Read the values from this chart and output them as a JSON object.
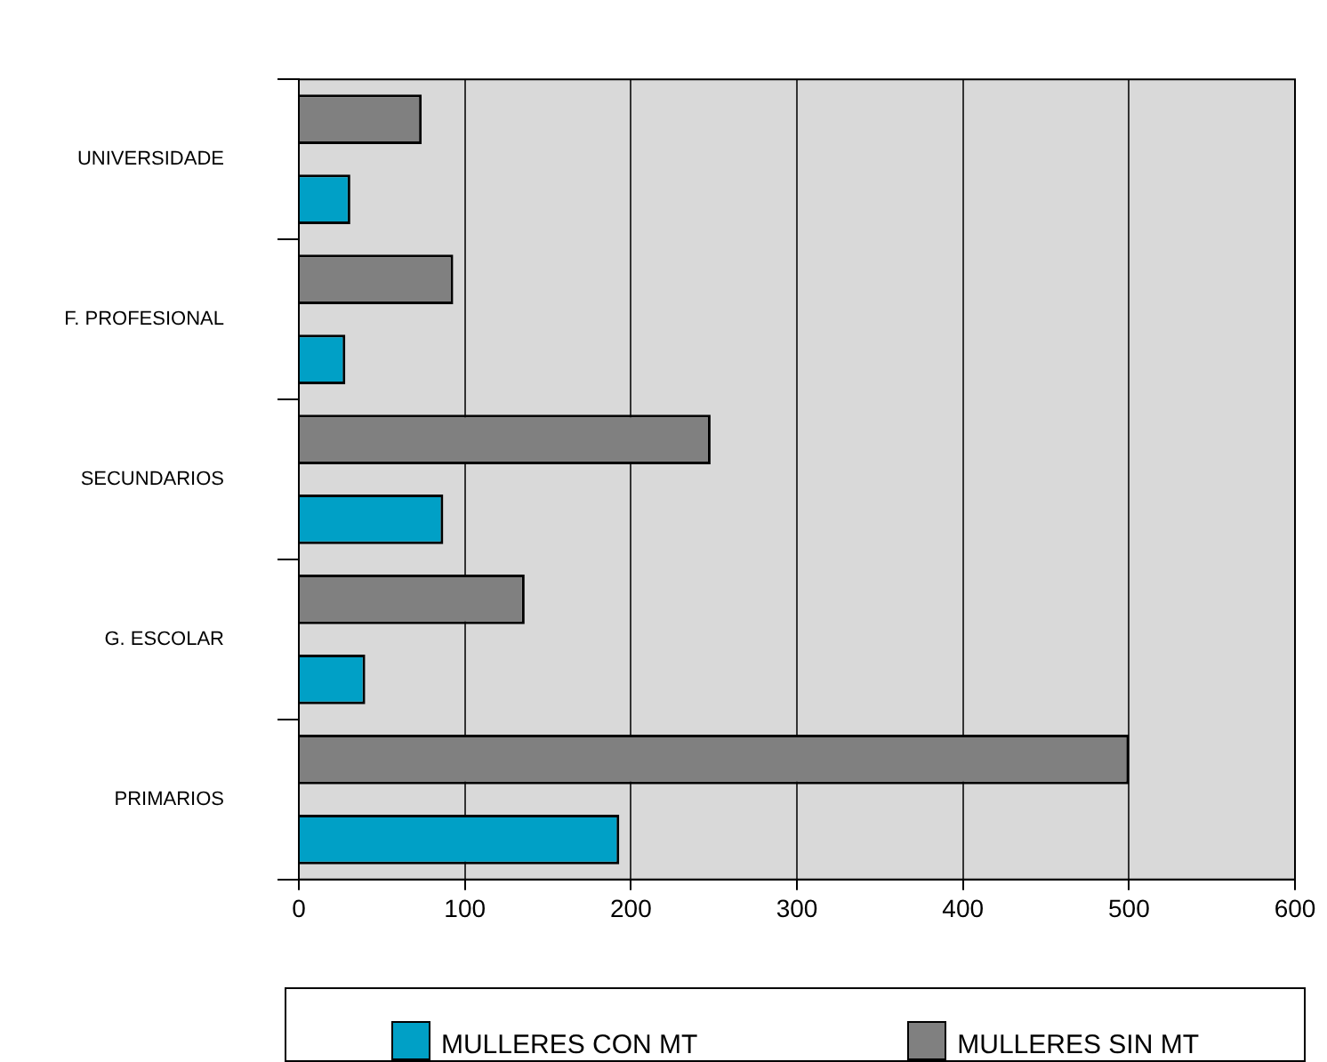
{
  "chart_data": {
    "type": "bar",
    "orientation": "horizontal",
    "categories": [
      "UNIVERSIDADE",
      "F. PROFESIONAL",
      "SECUNDARIOS",
      "G. ESCOLAR",
      "PRIMARIOS"
    ],
    "series": [
      {
        "name": "MULLERES CON MT",
        "color": "#00a0c6",
        "values": [
          31,
          28,
          87,
          40,
          193
        ]
      },
      {
        "name": "MULLERES SIN MT",
        "color": "#808080",
        "values": [
          74,
          93,
          248,
          136,
          500
        ]
      }
    ],
    "xlim": [
      0,
      600
    ],
    "xticks": [
      0,
      100,
      200,
      300,
      400,
      500,
      600
    ],
    "grid": "x",
    "legend": "bottom"
  }
}
